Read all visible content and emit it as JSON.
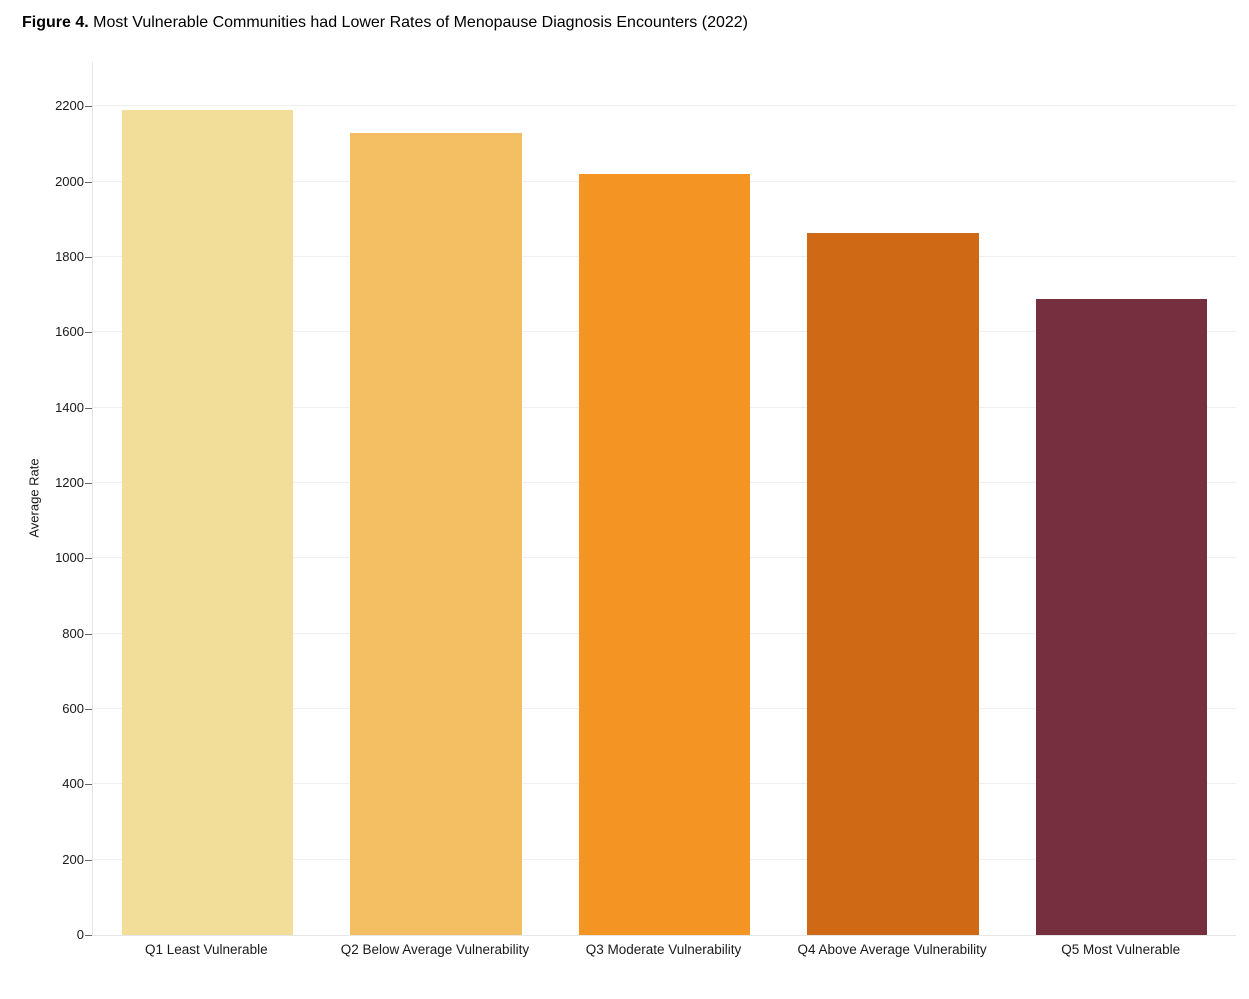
{
  "figure": {
    "title_prefix": "Figure 4.",
    "title_rest": " Most Vulnerable Communities had Lower Rates of Menopause Diagnosis Encounters (2022)"
  },
  "chart_data": {
    "type": "bar",
    "title": "Figure 4. Most Vulnerable Communities had Lower Rates of Menopause Diagnosis Encounters (2022)",
    "categories": [
      "Q1 Least Vulnerable",
      "Q2 Below Average Vulnerability",
      "Q3 Moderate Vulnerability",
      "Q4 Above Average Vulnerability",
      "Q5 Most Vulnerable"
    ],
    "values": [
      2190,
      2130,
      2020,
      1865,
      1690
    ],
    "bar_colors": [
      "#F2DE99",
      "#F3BF62",
      "#F39423",
      "#D06916",
      "#752F3F"
    ],
    "xlabel": "",
    "ylabel": "Average Rate",
    "ylim": [
      0,
      2318
    ],
    "yticks": [
      0,
      200,
      400,
      600,
      800,
      1000,
      1200,
      1400,
      1600,
      1800,
      2000,
      2200
    ],
    "grid": true,
    "legend": "none",
    "bar_band_fraction": 0.75,
    "colors": {
      "gridline": "#f0f0f0",
      "axis_line": "#e6e6e6",
      "tick_mark": "#666666",
      "text": "#1a1a1a"
    }
  }
}
